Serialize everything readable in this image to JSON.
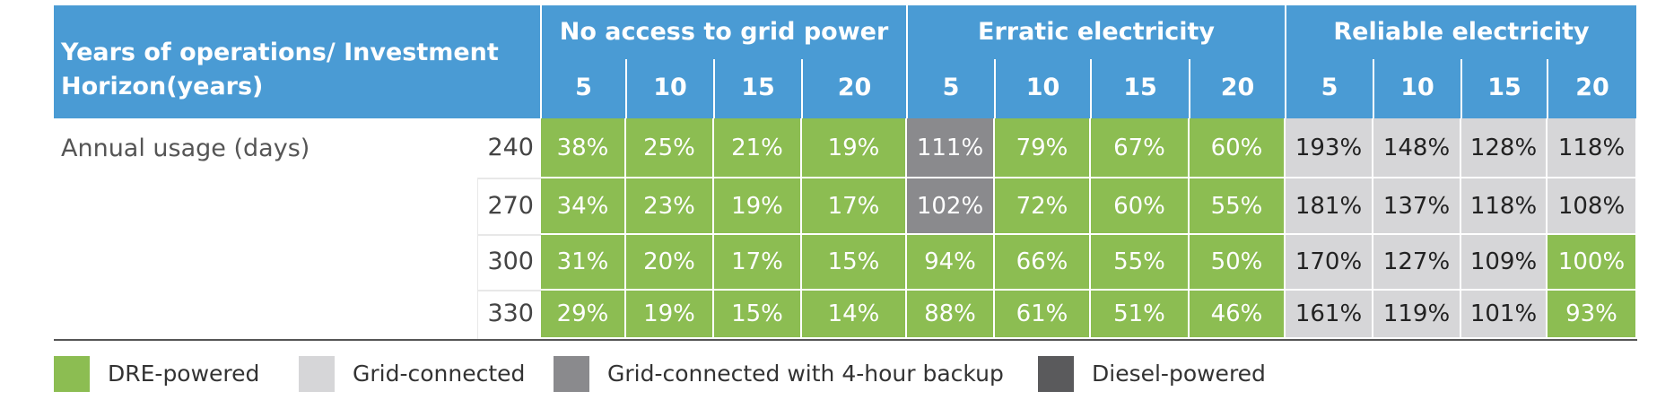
{
  "header": {
    "row_header": "Years of operations/ Investment Horizon(years)",
    "groups": [
      "No access to grid power",
      "Erratic electricity",
      "Reliable electricity"
    ],
    "years": [
      "5",
      "10",
      "15",
      "20"
    ]
  },
  "row_label": "Annual usage (days)",
  "colors": {
    "dre": "#8cbd52",
    "grid": "#d6d6d8",
    "grid_backup": "#8a8a8d",
    "diesel": "#5a5a5c",
    "header": "#4a9bd4"
  },
  "legend": [
    {
      "key": "dre",
      "label": "DRE-powered"
    },
    {
      "key": "grid",
      "label": "Grid-connected"
    },
    {
      "key": "grid_backup",
      "label": "Grid-connected with 4-hour backup"
    },
    {
      "key": "diesel",
      "label": "Diesel-powered"
    }
  ],
  "chart_data": {
    "type": "table",
    "rows": [
      {
        "days": "240",
        "values": [
          "38%",
          "25%",
          "21%",
          "19%",
          "111%",
          "79%",
          "67%",
          "60%",
          "193%",
          "148%",
          "128%",
          "118%"
        ],
        "types": [
          "dre",
          "dre",
          "dre",
          "dre",
          "grid_backup",
          "dre",
          "dre",
          "dre",
          "grid",
          "grid",
          "grid",
          "grid"
        ]
      },
      {
        "days": "270",
        "values": [
          "34%",
          "23%",
          "19%",
          "17%",
          "102%",
          "72%",
          "60%",
          "55%",
          "181%",
          "137%",
          "118%",
          "108%"
        ],
        "types": [
          "dre",
          "dre",
          "dre",
          "dre",
          "grid_backup",
          "dre",
          "dre",
          "dre",
          "grid",
          "grid",
          "grid",
          "grid"
        ]
      },
      {
        "days": "300",
        "values": [
          "31%",
          "20%",
          "17%",
          "15%",
          "94%",
          "66%",
          "55%",
          "50%",
          "170%",
          "127%",
          "109%",
          "100%"
        ],
        "types": [
          "dre",
          "dre",
          "dre",
          "dre",
          "dre",
          "dre",
          "dre",
          "dre",
          "grid",
          "grid",
          "grid",
          "dre"
        ]
      },
      {
        "days": "330",
        "values": [
          "29%",
          "19%",
          "15%",
          "14%",
          "88%",
          "61%",
          "51%",
          "46%",
          "161%",
          "119%",
          "101%",
          "93%"
        ],
        "types": [
          "dre",
          "dre",
          "dre",
          "dre",
          "dre",
          "dre",
          "dre",
          "dre",
          "grid",
          "grid",
          "grid",
          "dre"
        ]
      }
    ]
  }
}
